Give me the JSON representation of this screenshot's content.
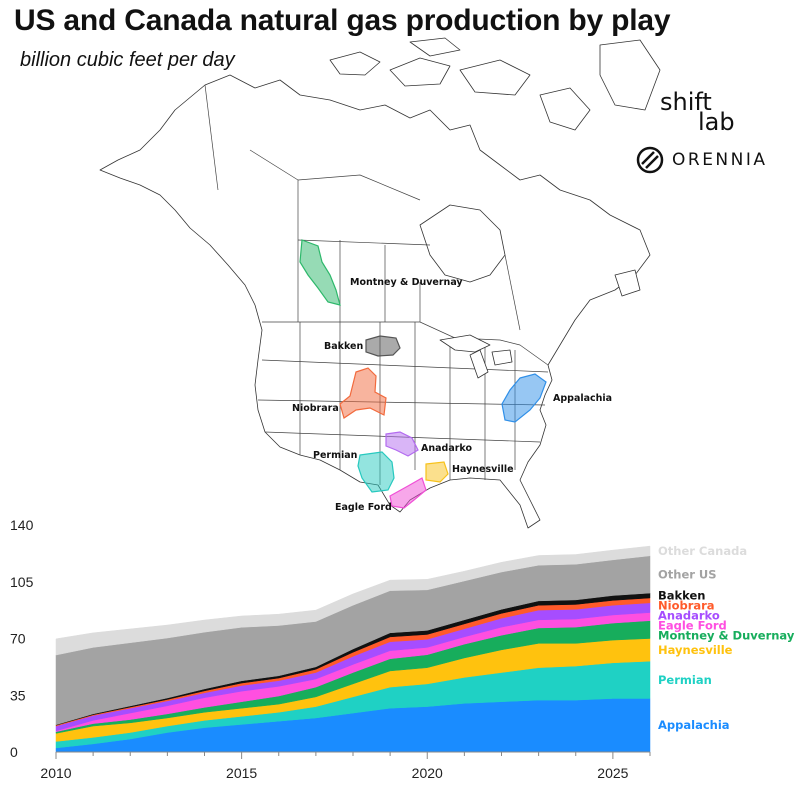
{
  "title": "US and Canada natural gas production by play",
  "subtitle": "billion cubic feet per day",
  "logos": {
    "shift_line1": "shift",
    "shift_line2": "lab",
    "orennia": "ORENNIA"
  },
  "map": {
    "regions": [
      {
        "name": "Montney & Duvernay",
        "color": "#2eb86b"
      },
      {
        "name": "Bakken",
        "color": "#555555"
      },
      {
        "name": "Niobrara",
        "color": "#f26a3d"
      },
      {
        "name": "Appalachia",
        "color": "#2f8fe8"
      },
      {
        "name": "Anadarko",
        "color": "#b36bf0"
      },
      {
        "name": "Permian",
        "color": "#27c9bf"
      },
      {
        "name": "Haynesville",
        "color": "#f7c21b"
      },
      {
        "name": "Eagle Ford",
        "color": "#f04fd6"
      }
    ]
  },
  "chart_data": {
    "type": "area",
    "stacked": true,
    "ylim": [
      0,
      140
    ],
    "yticks": [
      0,
      35,
      70,
      105,
      140
    ],
    "xticks": [
      2010,
      2015,
      2020,
      2025
    ],
    "x": [
      2010,
      2011,
      2012,
      2013,
      2014,
      2015,
      2016,
      2017,
      2018,
      2019,
      2020,
      2021,
      2022,
      2023,
      2024,
      2025,
      2026
    ],
    "series": [
      {
        "name": "Appalachia",
        "color": "#1a8cff",
        "values": [
          2.5,
          5,
          8,
          12,
          15,
          17,
          19,
          21,
          24,
          27,
          28,
          30,
          31,
          32,
          32,
          33,
          33
        ]
      },
      {
        "name": "Permian",
        "color": "#1fd1c4",
        "values": [
          4,
          4,
          4,
          4,
          4.5,
          5,
          5.5,
          7,
          10,
          13,
          14,
          16,
          18,
          20,
          21,
          22,
          23
        ]
      },
      {
        "name": "Haynesville",
        "color": "#ffc20e",
        "values": [
          5,
          7,
          6,
          5,
          5,
          5,
          5,
          6,
          8,
          10,
          10,
          12,
          14,
          15,
          14,
          14,
          14
        ]
      },
      {
        "name": "Montney & Duvernay",
        "color": "#17ad5c",
        "values": [
          1,
          1.5,
          2,
          2.5,
          3,
          4,
          5,
          6,
          7,
          7.5,
          8,
          8.5,
          9,
          9.5,
          10,
          10.5,
          11
        ]
      },
      {
        "name": "Eagle Ford",
        "color": "#ff4fe0",
        "values": [
          0.5,
          2,
          4,
          5,
          6,
          6.5,
          6,
          5,
          5,
          5,
          4.5,
          4.5,
          5,
          5,
          5,
          5,
          5
        ]
      },
      {
        "name": "Anadarko",
        "color": "#a64dff",
        "values": [
          3,
          3,
          3,
          3,
          3,
          3.5,
          3.5,
          4,
          5,
          5.5,
          5,
          5,
          5.5,
          6,
          6,
          6,
          6
        ]
      },
      {
        "name": "Niobrara",
        "color": "#ff5a2a",
        "values": [
          0.5,
          0.5,
          0.7,
          0.9,
          1.2,
          1.5,
          1.6,
          2,
          2.5,
          3,
          3,
          3,
          3,
          3,
          3,
          3,
          3
        ]
      },
      {
        "name": "Bakken",
        "color": "#111111",
        "values": [
          0.3,
          0.5,
          0.7,
          0.9,
          1.2,
          1.4,
          1.4,
          1.5,
          2,
          2.5,
          2.5,
          2.5,
          2.5,
          2.7,
          2.8,
          3,
          3
        ]
      },
      {
        "name": "Other US",
        "color": "#a3a3a3",
        "values": [
          43,
          41,
          39,
          37,
          35,
          33,
          31,
          28,
          27,
          26,
          25,
          24,
          23,
          22,
          22,
          22,
          23
        ]
      },
      {
        "name": "Other Canada",
        "color": "#dcdcdc",
        "values": [
          10,
          9,
          8.5,
          8,
          7.5,
          7,
          7,
          7,
          7,
          6.5,
          6.5,
          6,
          6,
          6,
          6,
          6,
          6
        ]
      }
    ]
  }
}
